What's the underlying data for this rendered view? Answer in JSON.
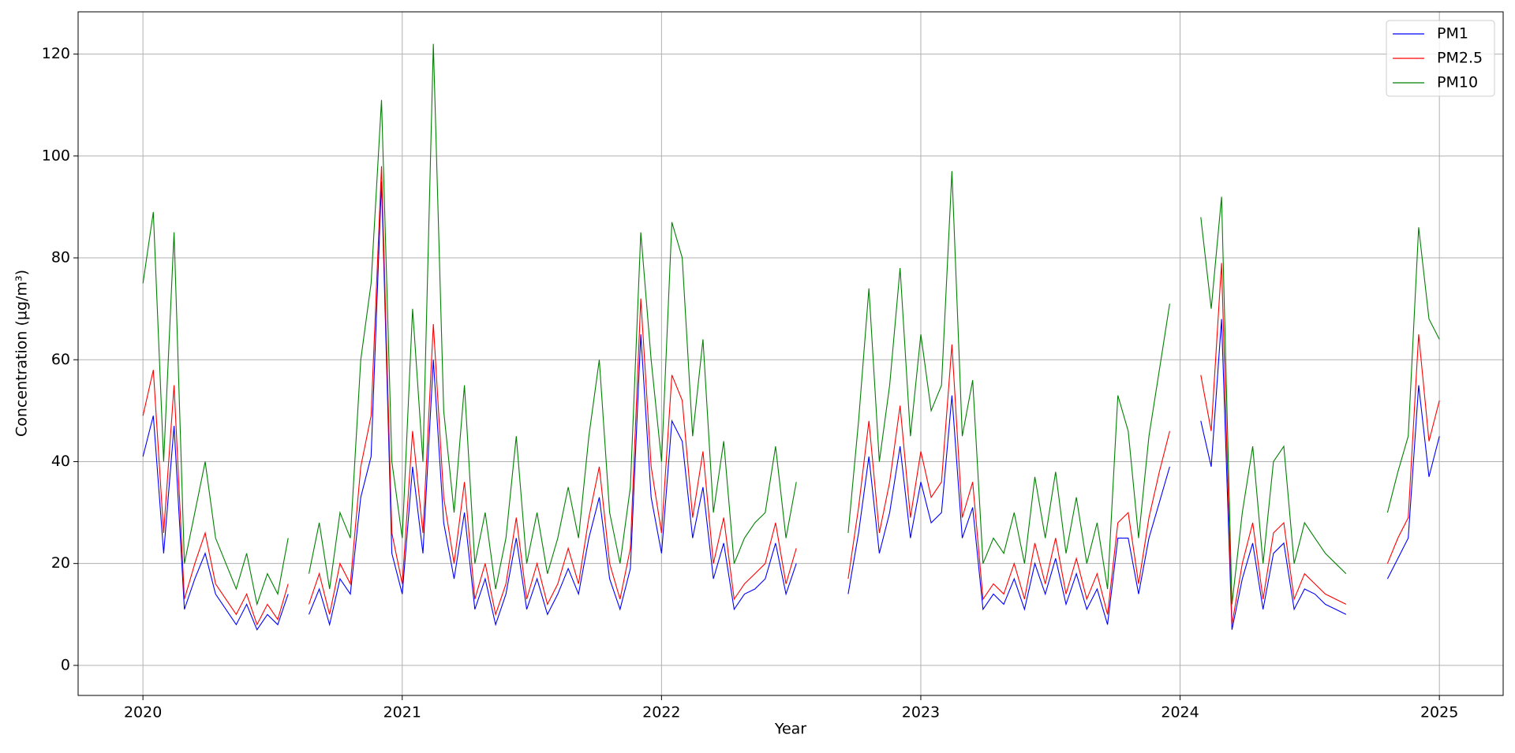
{
  "chart_data": {
    "type": "line",
    "xlabel": "Year",
    "ylabel": "Concentration (µg/m³)",
    "xlim": [
      2019.75,
      2025.246
    ],
    "ylim": [
      -5.9,
      128.3
    ],
    "xticks": [
      2020,
      2021,
      2022,
      2023,
      2024,
      2025
    ],
    "yticks": [
      0,
      20,
      40,
      60,
      80,
      100,
      120
    ],
    "grid": true,
    "legend": "upper right",
    "x": [
      2020,
      2020.04,
      2020.08,
      2020.12,
      2020.16,
      2020.2,
      2020.24,
      2020.28,
      2020.32,
      2020.36,
      2020.4,
      2020.44,
      2020.48,
      2020.52,
      2020.56,
      2020.6,
      2020.64,
      2020.68,
      2020.72,
      2020.76,
      2020.8,
      2020.84,
      2020.88,
      2020.92,
      2020.96,
      2021,
      2021.04,
      2021.08,
      2021.12,
      2021.16,
      2021.2,
      2021.24,
      2021.28,
      2021.32,
      2021.36,
      2021.4,
      2021.44,
      2021.48,
      2021.52,
      2021.56,
      2021.6,
      2021.64,
      2021.68,
      2021.72,
      2021.76,
      2021.8,
      2021.84,
      2021.88,
      2021.92,
      2021.96,
      2022,
      2022.04,
      2022.08,
      2022.12,
      2022.16,
      2022.2,
      2022.24,
      2022.28,
      2022.32,
      2022.36,
      2022.4,
      2022.44,
      2022.48,
      2022.52,
      2022.56,
      2022.6,
      2022.64,
      2022.68,
      2022.72,
      2022.76,
      2022.8,
      2022.84,
      2022.88,
      2022.92,
      2022.96,
      2023,
      2023.04,
      2023.08,
      2023.12,
      2023.16,
      2023.2,
      2023.24,
      2023.28,
      2023.32,
      2023.36,
      2023.4,
      2023.44,
      2023.48,
      2023.52,
      2023.56,
      2023.6,
      2023.64,
      2023.68,
      2023.72,
      2023.76,
      2023.8,
      2023.84,
      2023.88,
      2023.92,
      2023.96,
      2024,
      2024.04,
      2024.08,
      2024.12,
      2024.16,
      2024.2,
      2024.24,
      2024.28,
      2024.32,
      2024.36,
      2024.4,
      2024.44,
      2024.48,
      2024.52,
      2024.56,
      2024.6,
      2024.64,
      2024.68,
      2024.72,
      2024.76,
      2024.8,
      2024.84,
      2024.88,
      2024.92,
      2024.96,
      2025
    ],
    "series": [
      {
        "name": "PM1",
        "color": "#0000ff",
        "values": [
          41,
          49,
          22,
          47,
          11,
          17,
          22,
          14,
          11,
          8,
          12,
          7,
          10,
          8,
          14,
          null,
          10,
          15,
          8,
          17,
          14,
          33,
          41,
          95,
          22,
          14,
          39,
          22,
          60,
          28,
          17,
          30,
          11,
          17,
          8,
          14,
          25,
          11,
          17,
          10,
          14,
          19,
          14,
          25,
          33,
          17,
          11,
          19,
          65,
          33,
          22,
          48,
          44,
          25,
          35,
          17,
          24,
          11,
          14,
          15,
          17,
          24,
          14,
          20,
          null,
          null,
          null,
          null,
          14,
          26,
          41,
          22,
          30,
          43,
          25,
          36,
          28,
          30,
          53,
          25,
          31,
          11,
          14,
          12,
          17,
          11,
          20,
          14,
          21,
          12,
          18,
          11,
          15,
          8,
          25,
          25,
          14,
          25,
          32,
          39,
          null,
          null,
          48,
          39,
          68,
          7,
          17,
          24,
          11,
          22,
          24,
          11,
          15,
          14,
          12,
          11,
          10,
          null,
          null,
          null,
          17,
          21,
          25,
          55,
          37,
          45
        ]
      },
      {
        "name": "PM2.5",
        "color": "#ff0000",
        "values": [
          49,
          58,
          26,
          55,
          13,
          20,
          26,
          16,
          13,
          10,
          14,
          8,
          12,
          9,
          16,
          null,
          12,
          18,
          10,
          20,
          16,
          39,
          49,
          98,
          26,
          16,
          46,
          26,
          67,
          33,
          20,
          36,
          13,
          20,
          10,
          16,
          29,
          13,
          20,
          12,
          16,
          23,
          16,
          29,
          39,
          20,
          13,
          23,
          72,
          39,
          26,
          57,
          52,
          29,
          42,
          20,
          29,
          13,
          16,
          18,
          20,
          28,
          16,
          23,
          null,
          null,
          null,
          null,
          17,
          31,
          48,
          26,
          36,
          51,
          29,
          42,
          33,
          36,
          63,
          29,
          36,
          13,
          16,
          14,
          20,
          13,
          24,
          16,
          25,
          14,
          21,
          13,
          18,
          10,
          28,
          30,
          16,
          29,
          38,
          46,
          null,
          null,
          57,
          46,
          79,
          8,
          20,
          28,
          13,
          26,
          28,
          13,
          18,
          16,
          14,
          13,
          12,
          null,
          null,
          null,
          20,
          25,
          29,
          65,
          44,
          52
        ]
      },
      {
        "name": "PM10",
        "color": "#008000",
        "values": [
          75,
          89,
          40,
          85,
          20,
          30,
          40,
          25,
          20,
          15,
          22,
          12,
          18,
          14,
          25,
          null,
          18,
          28,
          15,
          30,
          25,
          60,
          75,
          111,
          40,
          25,
          70,
          40,
          122,
          50,
          30,
          55,
          20,
          30,
          15,
          25,
          45,
          20,
          30,
          18,
          25,
          35,
          25,
          45,
          60,
          30,
          20,
          35,
          85,
          60,
          40,
          87,
          80,
          45,
          64,
          30,
          44,
          20,
          25,
          28,
          30,
          43,
          25,
          36,
          null,
          null,
          null,
          null,
          26,
          48,
          74,
          40,
          55,
          78,
          45,
          65,
          50,
          55,
          97,
          45,
          56,
          20,
          25,
          22,
          30,
          20,
          37,
          25,
          38,
          22,
          33,
          20,
          28,
          15,
          53,
          46,
          25,
          45,
          58,
          71,
          null,
          null,
          88,
          70,
          92,
          12,
          30,
          43,
          20,
          40,
          43,
          20,
          28,
          25,
          22,
          20,
          18,
          null,
          null,
          null,
          30,
          38,
          45,
          86,
          68,
          64
        ]
      }
    ]
  }
}
